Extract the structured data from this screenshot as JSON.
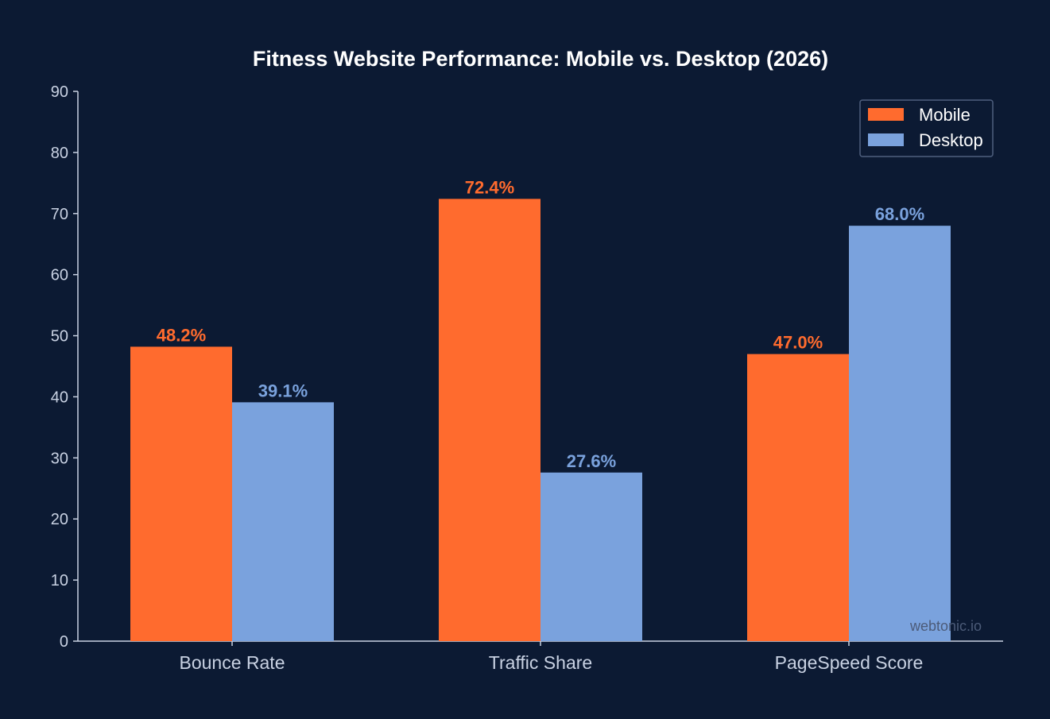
{
  "chart_data": {
    "type": "bar",
    "title": "Fitness Website Performance: Mobile vs. Desktop (2026)",
    "xlabel": "",
    "ylabel": "",
    "categories": [
      "Bounce Rate",
      "Traffic Share",
      "PageSpeed Score"
    ],
    "series": [
      {
        "name": "Mobile",
        "color": "#ff6b2e",
        "values": [
          48.2,
          72.4,
          47.0
        ],
        "labels": [
          "48.2%",
          "72.4%",
          "47.0%"
        ]
      },
      {
        "name": "Desktop",
        "color": "#7aa2dd",
        "values": [
          39.1,
          27.6,
          68.0
        ],
        "labels": [
          "39.1%",
          "27.6%",
          "68.0%"
        ]
      }
    ],
    "ylim": [
      0,
      90
    ],
    "yticks": [
      0,
      10,
      20,
      30,
      40,
      50,
      60,
      70,
      80,
      90
    ],
    "grid": false,
    "legend_position": "top-right"
  },
  "watermark": "webtonic.io"
}
